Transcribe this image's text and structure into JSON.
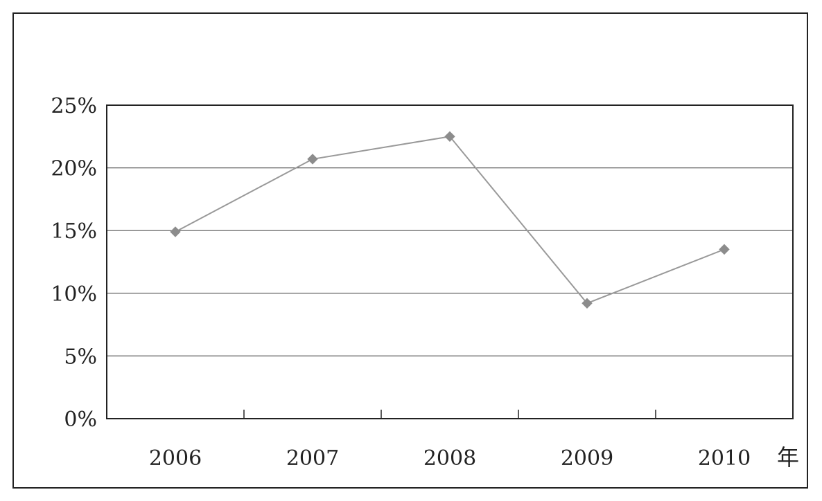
{
  "chart_data": {
    "type": "line",
    "categories": [
      "2006",
      "2007",
      "2008",
      "2009",
      "2010"
    ],
    "values": [
      0.149,
      0.207,
      0.225,
      0.092,
      0.135
    ],
    "ylim": [
      0,
      0.25
    ],
    "yticks": [
      0,
      0.05,
      0.1,
      0.15,
      0.2,
      0.25
    ],
    "ytick_labels": [
      "0%",
      "5%",
      "10%",
      "15%",
      "20%",
      "25%"
    ],
    "xunit": "年",
    "grid": true,
    "legend": "none",
    "colors": {
      "line": "#999999",
      "marker": "#8c8c8c",
      "axis": "#222222",
      "grid": "#555555"
    }
  }
}
